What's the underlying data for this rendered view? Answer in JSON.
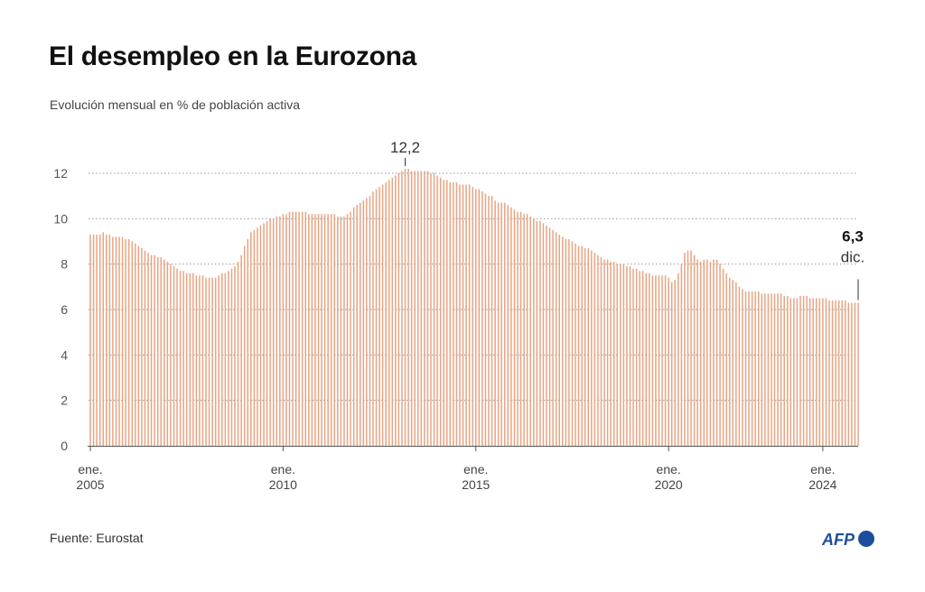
{
  "title": "El desempleo en la Eurozona",
  "subtitle": "Evolución mensual en % de población activa",
  "source": "Fuente: Eurostat",
  "logo_text": "AFP",
  "colors": {
    "bar": "#e8a482",
    "grid": "#9a9a9a",
    "axis": "#555555",
    "logo": "#1d4d9c"
  },
  "chart_data": {
    "type": "bar",
    "frequency": "monthly",
    "start": "2005-01",
    "end": "2024-12",
    "ylim": [
      0,
      12
    ],
    "yticks": [
      0,
      2,
      4,
      6,
      8,
      10,
      12
    ],
    "grid": true,
    "xticks": [
      {
        "month": "2005-01",
        "label_top": "ene.",
        "label_bottom": "2005"
      },
      {
        "month": "2010-01",
        "label_top": "ene.",
        "label_bottom": "2010"
      },
      {
        "month": "2015-01",
        "label_top": "ene.",
        "label_bottom": "2015"
      },
      {
        "month": "2020-01",
        "label_top": "ene.",
        "label_bottom": "2020"
      },
      {
        "month": "2024-01",
        "label_top": "ene.",
        "label_bottom": "2024"
      }
    ],
    "annotations": [
      {
        "month": "2013-03",
        "label": "12,2"
      },
      {
        "month": "2024-12",
        "label": "6,3",
        "sublabel": "dic."
      }
    ],
    "values": [
      9.3,
      9.3,
      9.3,
      9.3,
      9.4,
      9.3,
      9.3,
      9.2,
      9.2,
      9.2,
      9.2,
      9.1,
      9.1,
      9.0,
      8.9,
      8.8,
      8.7,
      8.6,
      8.5,
      8.4,
      8.4,
      8.3,
      8.3,
      8.2,
      8.1,
      8.0,
      7.9,
      7.8,
      7.7,
      7.7,
      7.6,
      7.6,
      7.6,
      7.5,
      7.5,
      7.5,
      7.4,
      7.4,
      7.4,
      7.4,
      7.5,
      7.6,
      7.6,
      7.7,
      7.8,
      7.9,
      8.1,
      8.4,
      8.8,
      9.1,
      9.4,
      9.5,
      9.6,
      9.7,
      9.8,
      9.9,
      10.0,
      10.0,
      10.1,
      10.1,
      10.2,
      10.2,
      10.3,
      10.3,
      10.3,
      10.3,
      10.3,
      10.3,
      10.2,
      10.2,
      10.2,
      10.2,
      10.2,
      10.2,
      10.2,
      10.2,
      10.2,
      10.1,
      10.1,
      10.1,
      10.2,
      10.3,
      10.5,
      10.6,
      10.7,
      10.8,
      10.9,
      11.0,
      11.2,
      11.3,
      11.4,
      11.5,
      11.6,
      11.7,
      11.8,
      11.9,
      12.0,
      12.1,
      12.2,
      12.2,
      12.1,
      12.1,
      12.1,
      12.1,
      12.1,
      12.1,
      12.0,
      12.0,
      11.9,
      11.8,
      11.7,
      11.7,
      11.6,
      11.6,
      11.6,
      11.5,
      11.5,
      11.5,
      11.5,
      11.4,
      11.3,
      11.3,
      11.2,
      11.1,
      11.0,
      11.0,
      10.8,
      10.7,
      10.7,
      10.7,
      10.6,
      10.5,
      10.4,
      10.3,
      10.3,
      10.2,
      10.2,
      10.1,
      10.0,
      9.9,
      9.9,
      9.8,
      9.7,
      9.6,
      9.5,
      9.4,
      9.3,
      9.2,
      9.1,
      9.1,
      9.0,
      8.9,
      8.8,
      8.8,
      8.7,
      8.7,
      8.6,
      8.5,
      8.4,
      8.3,
      8.2,
      8.2,
      8.1,
      8.1,
      8.0,
      8.0,
      8.0,
      7.9,
      7.9,
      7.8,
      7.8,
      7.7,
      7.7,
      7.6,
      7.6,
      7.5,
      7.5,
      7.5,
      7.5,
      7.5,
      7.4,
      7.2,
      7.3,
      7.6,
      8.0,
      8.5,
      8.6,
      8.6,
      8.4,
      8.2,
      8.1,
      8.2,
      8.2,
      8.1,
      8.2,
      8.2,
      8.0,
      7.8,
      7.6,
      7.4,
      7.3,
      7.2,
      7.0,
      6.9,
      6.8,
      6.8,
      6.8,
      6.8,
      6.8,
      6.7,
      6.7,
      6.7,
      6.7,
      6.7,
      6.7,
      6.7,
      6.6,
      6.6,
      6.5,
      6.5,
      6.5,
      6.6,
      6.6,
      6.6,
      6.5,
      6.5,
      6.5,
      6.5,
      6.5,
      6.5,
      6.4,
      6.4,
      6.4,
      6.4,
      6.4,
      6.4,
      6.3,
      6.3,
      6.3,
      6.3
    ]
  }
}
